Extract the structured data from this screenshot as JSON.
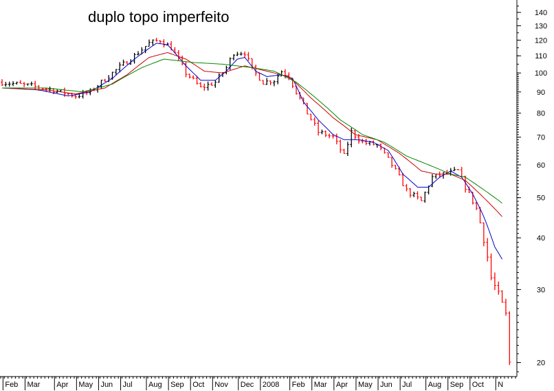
{
  "chart_data": {
    "type": "candlestick-with-moving-averages",
    "title": "duplo topo imperfeito",
    "y_scale": "log",
    "ylim": [
      18.5,
      150
    ],
    "y_ticks": [
      20,
      30,
      40,
      50,
      60,
      70,
      80,
      90,
      100,
      110,
      120,
      130,
      140
    ],
    "x_labels": [
      "Feb",
      "Mar",
      "Apr",
      "May",
      "Jun",
      "Jul",
      "Aug",
      "Sep",
      "Oct",
      "Nov",
      "Dec",
      "2008",
      "Feb",
      "Mar",
      "Apr",
      "May",
      "Jun",
      "Jul",
      "Aug",
      "Sep",
      "Oct",
      "N"
    ],
    "colors": {
      "up_bar": "#000000",
      "down_bar": "#ff0000",
      "ma_short": "#0000cc",
      "ma_medium": "#cc0000",
      "ma_long": "#008800"
    },
    "price_path": [
      [
        0,
        95
      ],
      [
        8,
        93
      ],
      [
        14,
        91
      ],
      [
        20,
        88
      ],
      [
        24,
        90
      ],
      [
        30,
        100
      ],
      [
        36,
        110
      ],
      [
        40,
        118
      ],
      [
        43,
        120
      ],
      [
        46,
        115
      ],
      [
        50,
        100
      ],
      [
        54,
        92
      ],
      [
        58,
        95
      ],
      [
        61,
        103
      ],
      [
        63,
        112
      ],
      [
        66,
        112
      ],
      [
        68,
        102
      ],
      [
        71,
        95
      ],
      [
        74,
        96
      ],
      [
        76,
        101
      ],
      [
        78,
        98
      ],
      [
        80,
        90
      ],
      [
        83,
        80
      ],
      [
        86,
        72
      ],
      [
        90,
        70
      ],
      [
        93,
        63
      ],
      [
        95,
        72
      ],
      [
        98,
        68
      ],
      [
        102,
        67
      ],
      [
        106,
        60
      ],
      [
        110,
        52
      ],
      [
        114,
        49
      ],
      [
        117,
        56
      ],
      [
        120,
        57
      ],
      [
        124,
        58
      ],
      [
        126,
        53
      ],
      [
        129,
        47
      ],
      [
        131,
        40
      ],
      [
        133,
        32
      ],
      [
        135,
        29
      ],
      [
        137,
        26
      ],
      [
        138,
        20
      ]
    ],
    "moving_averages": [
      {
        "id": "ma_short",
        "color": "#0000cc",
        "points": [
          [
            0,
            92
          ],
          [
            10,
            91
          ],
          [
            18,
            88
          ],
          [
            24,
            90
          ],
          [
            30,
            97
          ],
          [
            36,
            108
          ],
          [
            42,
            118
          ],
          [
            45,
            117
          ],
          [
            50,
            104
          ],
          [
            54,
            96
          ],
          [
            58,
            96
          ],
          [
            61,
            101
          ],
          [
            64,
            108
          ],
          [
            66,
            109
          ],
          [
            69,
            101
          ],
          [
            72,
            98
          ],
          [
            76,
            99
          ],
          [
            79,
            97
          ],
          [
            82,
            85
          ],
          [
            86,
            77
          ],
          [
            90,
            71
          ],
          [
            93,
            69
          ],
          [
            97,
            69
          ],
          [
            101,
            68
          ],
          [
            105,
            65
          ],
          [
            109,
            57
          ],
          [
            113,
            53
          ],
          [
            116,
            53
          ],
          [
            119,
            56
          ],
          [
            122,
            58
          ],
          [
            125,
            56
          ],
          [
            128,
            51
          ],
          [
            131,
            45
          ],
          [
            134,
            38
          ],
          [
            136,
            35.5
          ]
        ]
      },
      {
        "id": "ma_medium",
        "color": "#cc0000",
        "points": [
          [
            0,
            92
          ],
          [
            12,
            91
          ],
          [
            20,
            89
          ],
          [
            28,
            92
          ],
          [
            34,
            99
          ],
          [
            40,
            109
          ],
          [
            45,
            112
          ],
          [
            50,
            108
          ],
          [
            55,
            101
          ],
          [
            60,
            100
          ],
          [
            66,
            104
          ],
          [
            72,
            101
          ],
          [
            78,
            98
          ],
          [
            84,
            87
          ],
          [
            90,
            78
          ],
          [
            96,
            71
          ],
          [
            102,
            69
          ],
          [
            108,
            64
          ],
          [
            114,
            58
          ],
          [
            118,
            57
          ],
          [
            122,
            57
          ],
          [
            126,
            55
          ],
          [
            130,
            51
          ],
          [
            134,
            47
          ],
          [
            136,
            45
          ]
        ]
      },
      {
        "id": "ma_long",
        "color": "#008800",
        "points": [
          [
            0,
            92
          ],
          [
            12,
            92
          ],
          [
            22,
            90
          ],
          [
            30,
            94
          ],
          [
            38,
            103
          ],
          [
            44,
            108
          ],
          [
            52,
            106
          ],
          [
            60,
            105
          ],
          [
            68,
            103
          ],
          [
            74,
            101
          ],
          [
            80,
            95
          ],
          [
            86,
            86
          ],
          [
            92,
            77
          ],
          [
            98,
            71
          ],
          [
            104,
            68
          ],
          [
            110,
            63
          ],
          [
            116,
            60
          ],
          [
            122,
            57
          ],
          [
            126,
            56
          ],
          [
            130,
            53
          ],
          [
            134,
            50
          ],
          [
            136,
            48.5
          ]
        ]
      }
    ]
  }
}
